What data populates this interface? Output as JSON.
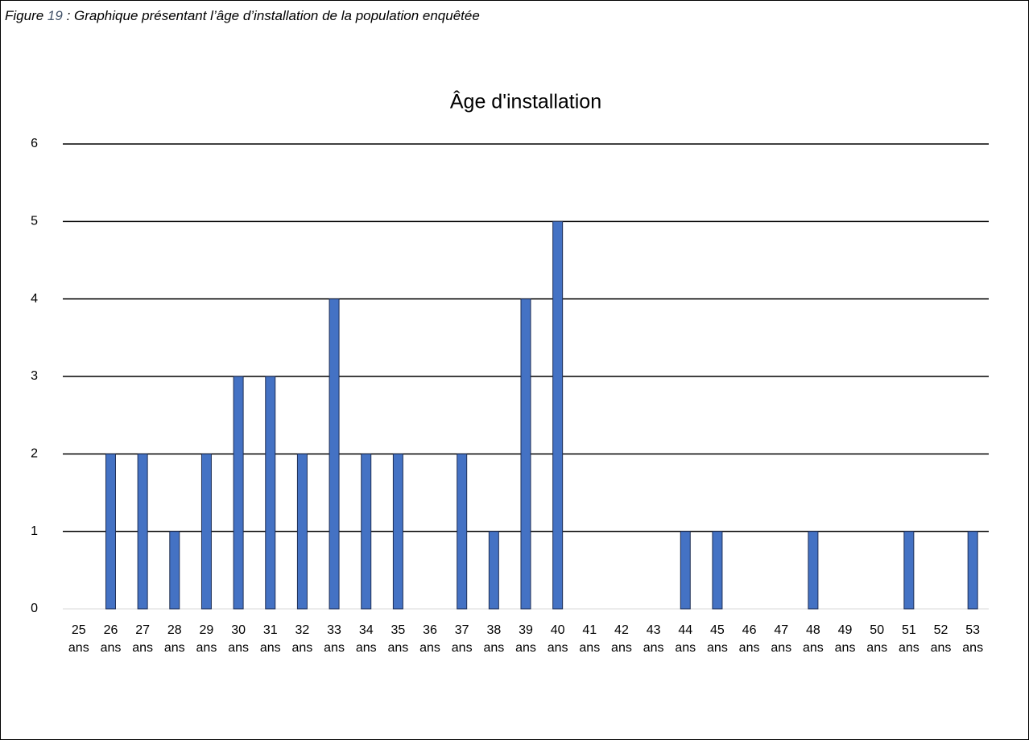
{
  "caption": {
    "prefix": "Figure ",
    "number": "19",
    "text": " : Graphique présentant l’âge d’installation de la population enquêtée"
  },
  "chart_data": {
    "type": "bar",
    "title": "Âge d'installation",
    "categories": [
      "25 ans",
      "26 ans",
      "27 ans",
      "28 ans",
      "29 ans",
      "30 ans",
      "31 ans",
      "32 ans",
      "33 ans",
      "34 ans",
      "35 ans",
      "36 ans",
      "37 ans",
      "38 ans",
      "39 ans",
      "40 ans",
      "41 ans",
      "42 ans",
      "43 ans",
      "44 ans",
      "45 ans",
      "46 ans",
      "47 ans",
      "48 ans",
      "49 ans",
      "50 ans",
      "51 ans",
      "52 ans",
      "53 ans"
    ],
    "values": [
      0,
      2,
      2,
      1,
      2,
      3,
      3,
      2,
      4,
      2,
      2,
      0,
      2,
      1,
      4,
      5,
      0,
      0,
      0,
      1,
      1,
      0,
      0,
      1,
      0,
      0,
      1,
      0,
      1
    ],
    "color": "#4472c4",
    "ylim": [
      0,
      6
    ],
    "yticks": [
      0,
      1,
      2,
      3,
      4,
      5,
      6
    ],
    "grid": true
  }
}
